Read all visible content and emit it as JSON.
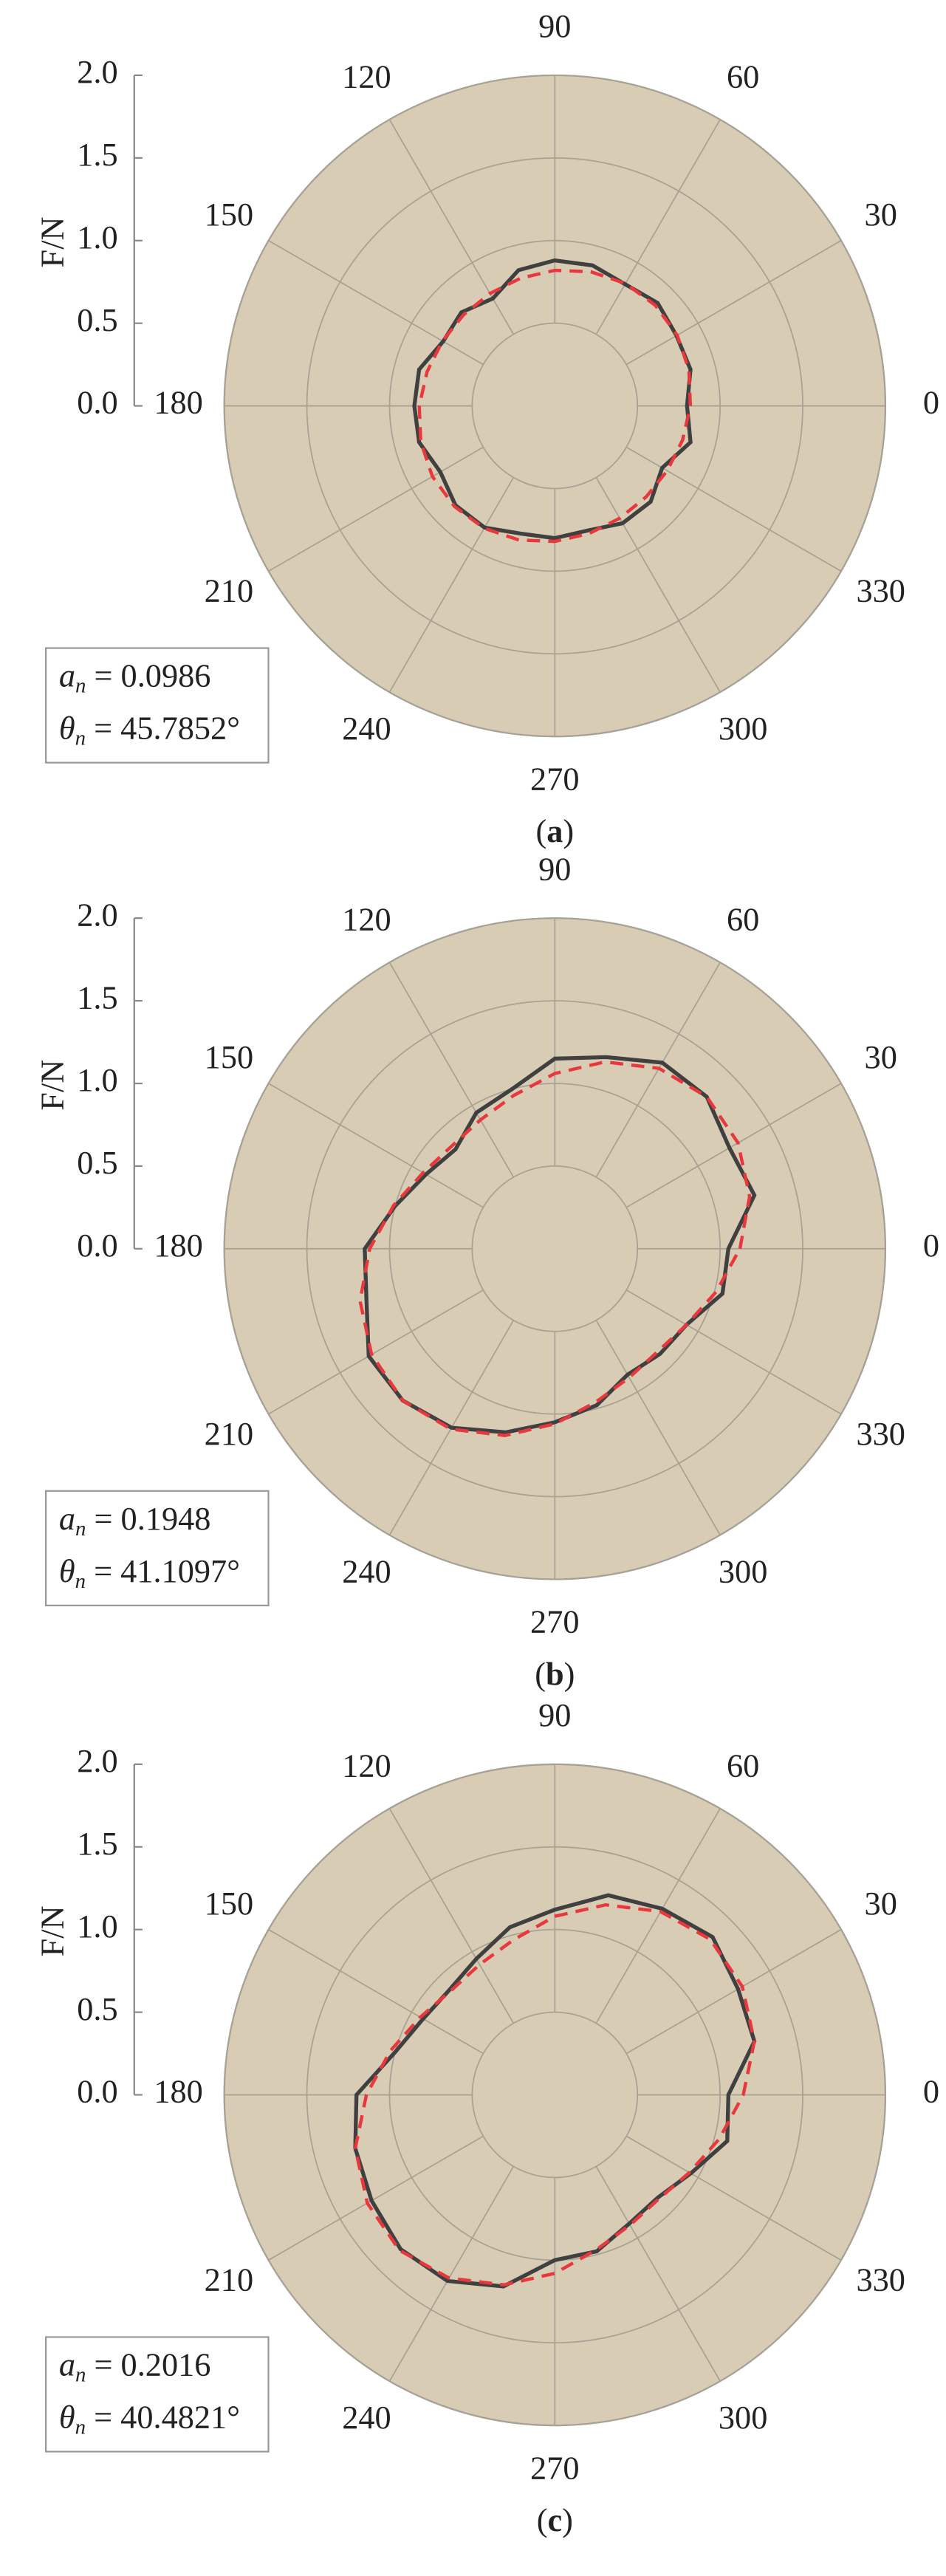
{
  "chart_data": [
    {
      "type": "polar",
      "caption": [
        "(",
        "a",
        ")"
      ],
      "ylabel": "F/N",
      "ylim": [
        0,
        2
      ],
      "yticks": [
        {
          "value": 0,
          "label": "0.0"
        },
        {
          "value": 0.5,
          "label": "0.5"
        },
        {
          "value": 1,
          "label": "1.0"
        },
        {
          "value": 1.5,
          "label": "1.5"
        },
        {
          "value": 2,
          "label": "2.0"
        }
      ],
      "xticks": [
        0,
        30,
        60,
        90,
        120,
        150,
        180,
        210,
        240,
        270,
        300,
        330
      ],
      "grid": true,
      "annotation": [
        {
          "symbol": "a",
          "sub": "n",
          "text": " = 0.0986"
        },
        {
          "symbol": "θ",
          "sub": "n",
          "text": " = 45.7852°"
        }
      ],
      "x": [
        0,
        15,
        30,
        45,
        60,
        75,
        90,
        105,
        120,
        135,
        150,
        165,
        180,
        195,
        210,
        225,
        240,
        255,
        270,
        285,
        300,
        315,
        330,
        345
      ],
      "series": [
        {
          "color": "#404040",
          "values": [
            0.8,
            0.85,
            0.85,
            0.88,
            0.85,
            0.88,
            0.88,
            0.85,
            0.75,
            0.8,
            0.78,
            0.85,
            0.85,
            0.85,
            0.8,
            0.85,
            0.85,
            0.8,
            0.8,
            0.78,
            0.82,
            0.82,
            0.75,
            0.85
          ]
        },
        {
          "color": "#e8383d",
          "dashed": true,
          "values": [
            0.82,
            0.84,
            0.855,
            0.86,
            0.855,
            0.84,
            0.82,
            0.8,
            0.785,
            0.78,
            0.785,
            0.8,
            0.82,
            0.84,
            0.855,
            0.86,
            0.855,
            0.84,
            0.82,
            0.8,
            0.785,
            0.78,
            0.785,
            0.8
          ]
        }
      ]
    },
    {
      "type": "polar",
      "caption": [
        "(",
        "b",
        ")"
      ],
      "ylabel": "F/N",
      "ylim": [
        0,
        2
      ],
      "yticks": [
        {
          "value": 0,
          "label": "0.0"
        },
        {
          "value": 0.5,
          "label": "0.5"
        },
        {
          "value": 1,
          "label": "1.0"
        },
        {
          "value": 1.5,
          "label": "1.5"
        },
        {
          "value": 2,
          "label": "2.0"
        }
      ],
      "xticks": [
        0,
        30,
        60,
        90,
        120,
        150,
        180,
        210,
        240,
        270,
        300,
        330
      ],
      "grid": true,
      "annotation": [
        {
          "symbol": "a",
          "sub": "n",
          "text": " = 0.1948"
        },
        {
          "symbol": "θ",
          "sub": "n",
          "text": " = 41.1097°"
        }
      ],
      "x": [
        0,
        15,
        30,
        45,
        60,
        75,
        90,
        105,
        120,
        135,
        150,
        165,
        180,
        195,
        210,
        225,
        240,
        255,
        270,
        285,
        300,
        315,
        330,
        345
      ],
      "series": [
        {
          "color": "#404040",
          "values": [
            1.05,
            1.25,
            1.22,
            1.3,
            1.3,
            1.2,
            1.15,
            1.0,
            0.95,
            0.85,
            0.9,
            1.0,
            1.15,
            1.18,
            1.3,
            1.3,
            1.25,
            1.15,
            1.05,
            0.98,
            0.88,
            0.9,
            0.92,
            1.05
          ]
        },
        {
          "color": "#e8383d",
          "dashed": true,
          "values": [
            1.12,
            1.22,
            1.28,
            1.3,
            1.26,
            1.17,
            1.06,
            0.96,
            0.9,
            0.88,
            0.92,
            1.01,
            1.12,
            1.22,
            1.28,
            1.3,
            1.26,
            1.17,
            1.06,
            0.96,
            0.9,
            0.88,
            0.92,
            1.01
          ]
        }
      ]
    },
    {
      "type": "polar",
      "caption": [
        "(",
        "c",
        ")"
      ],
      "ylabel": "F/N",
      "ylim": [
        0,
        2
      ],
      "yticks": [
        {
          "value": 0,
          "label": "0.0"
        },
        {
          "value": 0.5,
          "label": "0.5"
        },
        {
          "value": 1,
          "label": "1.0"
        },
        {
          "value": 1.5,
          "label": "1.5"
        },
        {
          "value": 2,
          "label": "2.0"
        }
      ],
      "xticks": [
        0,
        30,
        60,
        90,
        120,
        150,
        180,
        210,
        240,
        270,
        300,
        330
      ],
      "grid": true,
      "annotation": [
        {
          "symbol": "a",
          "sub": "n",
          "text": " = 0.2016"
        },
        {
          "symbol": "θ",
          "sub": "n",
          "text": " = 40.4821°"
        }
      ],
      "x": [
        0,
        15,
        30,
        45,
        60,
        75,
        90,
        105,
        120,
        135,
        150,
        165,
        180,
        195,
        210,
        225,
        240,
        255,
        270,
        285,
        300,
        315,
        330,
        345
      ],
      "series": [
        {
          "color": "#404040",
          "values": [
            1.05,
            1.25,
            1.28,
            1.35,
            1.3,
            1.25,
            1.12,
            1.05,
            0.95,
            0.9,
            0.92,
            1.0,
            1.2,
            1.25,
            1.28,
            1.32,
            1.3,
            1.2,
            1.0,
            0.98,
            0.9,
            0.88,
            0.95,
            1.08
          ]
        },
        {
          "color": "#e8383d",
          "dashed": true,
          "values": [
            1.14,
            1.25,
            1.31,
            1.33,
            1.28,
            1.19,
            1.08,
            0.97,
            0.91,
            0.89,
            0.94,
            1.03,
            1.14,
            1.25,
            1.31,
            1.33,
            1.28,
            1.19,
            1.08,
            0.97,
            0.91,
            0.89,
            0.94,
            1.03
          ]
        }
      ]
    }
  ]
}
